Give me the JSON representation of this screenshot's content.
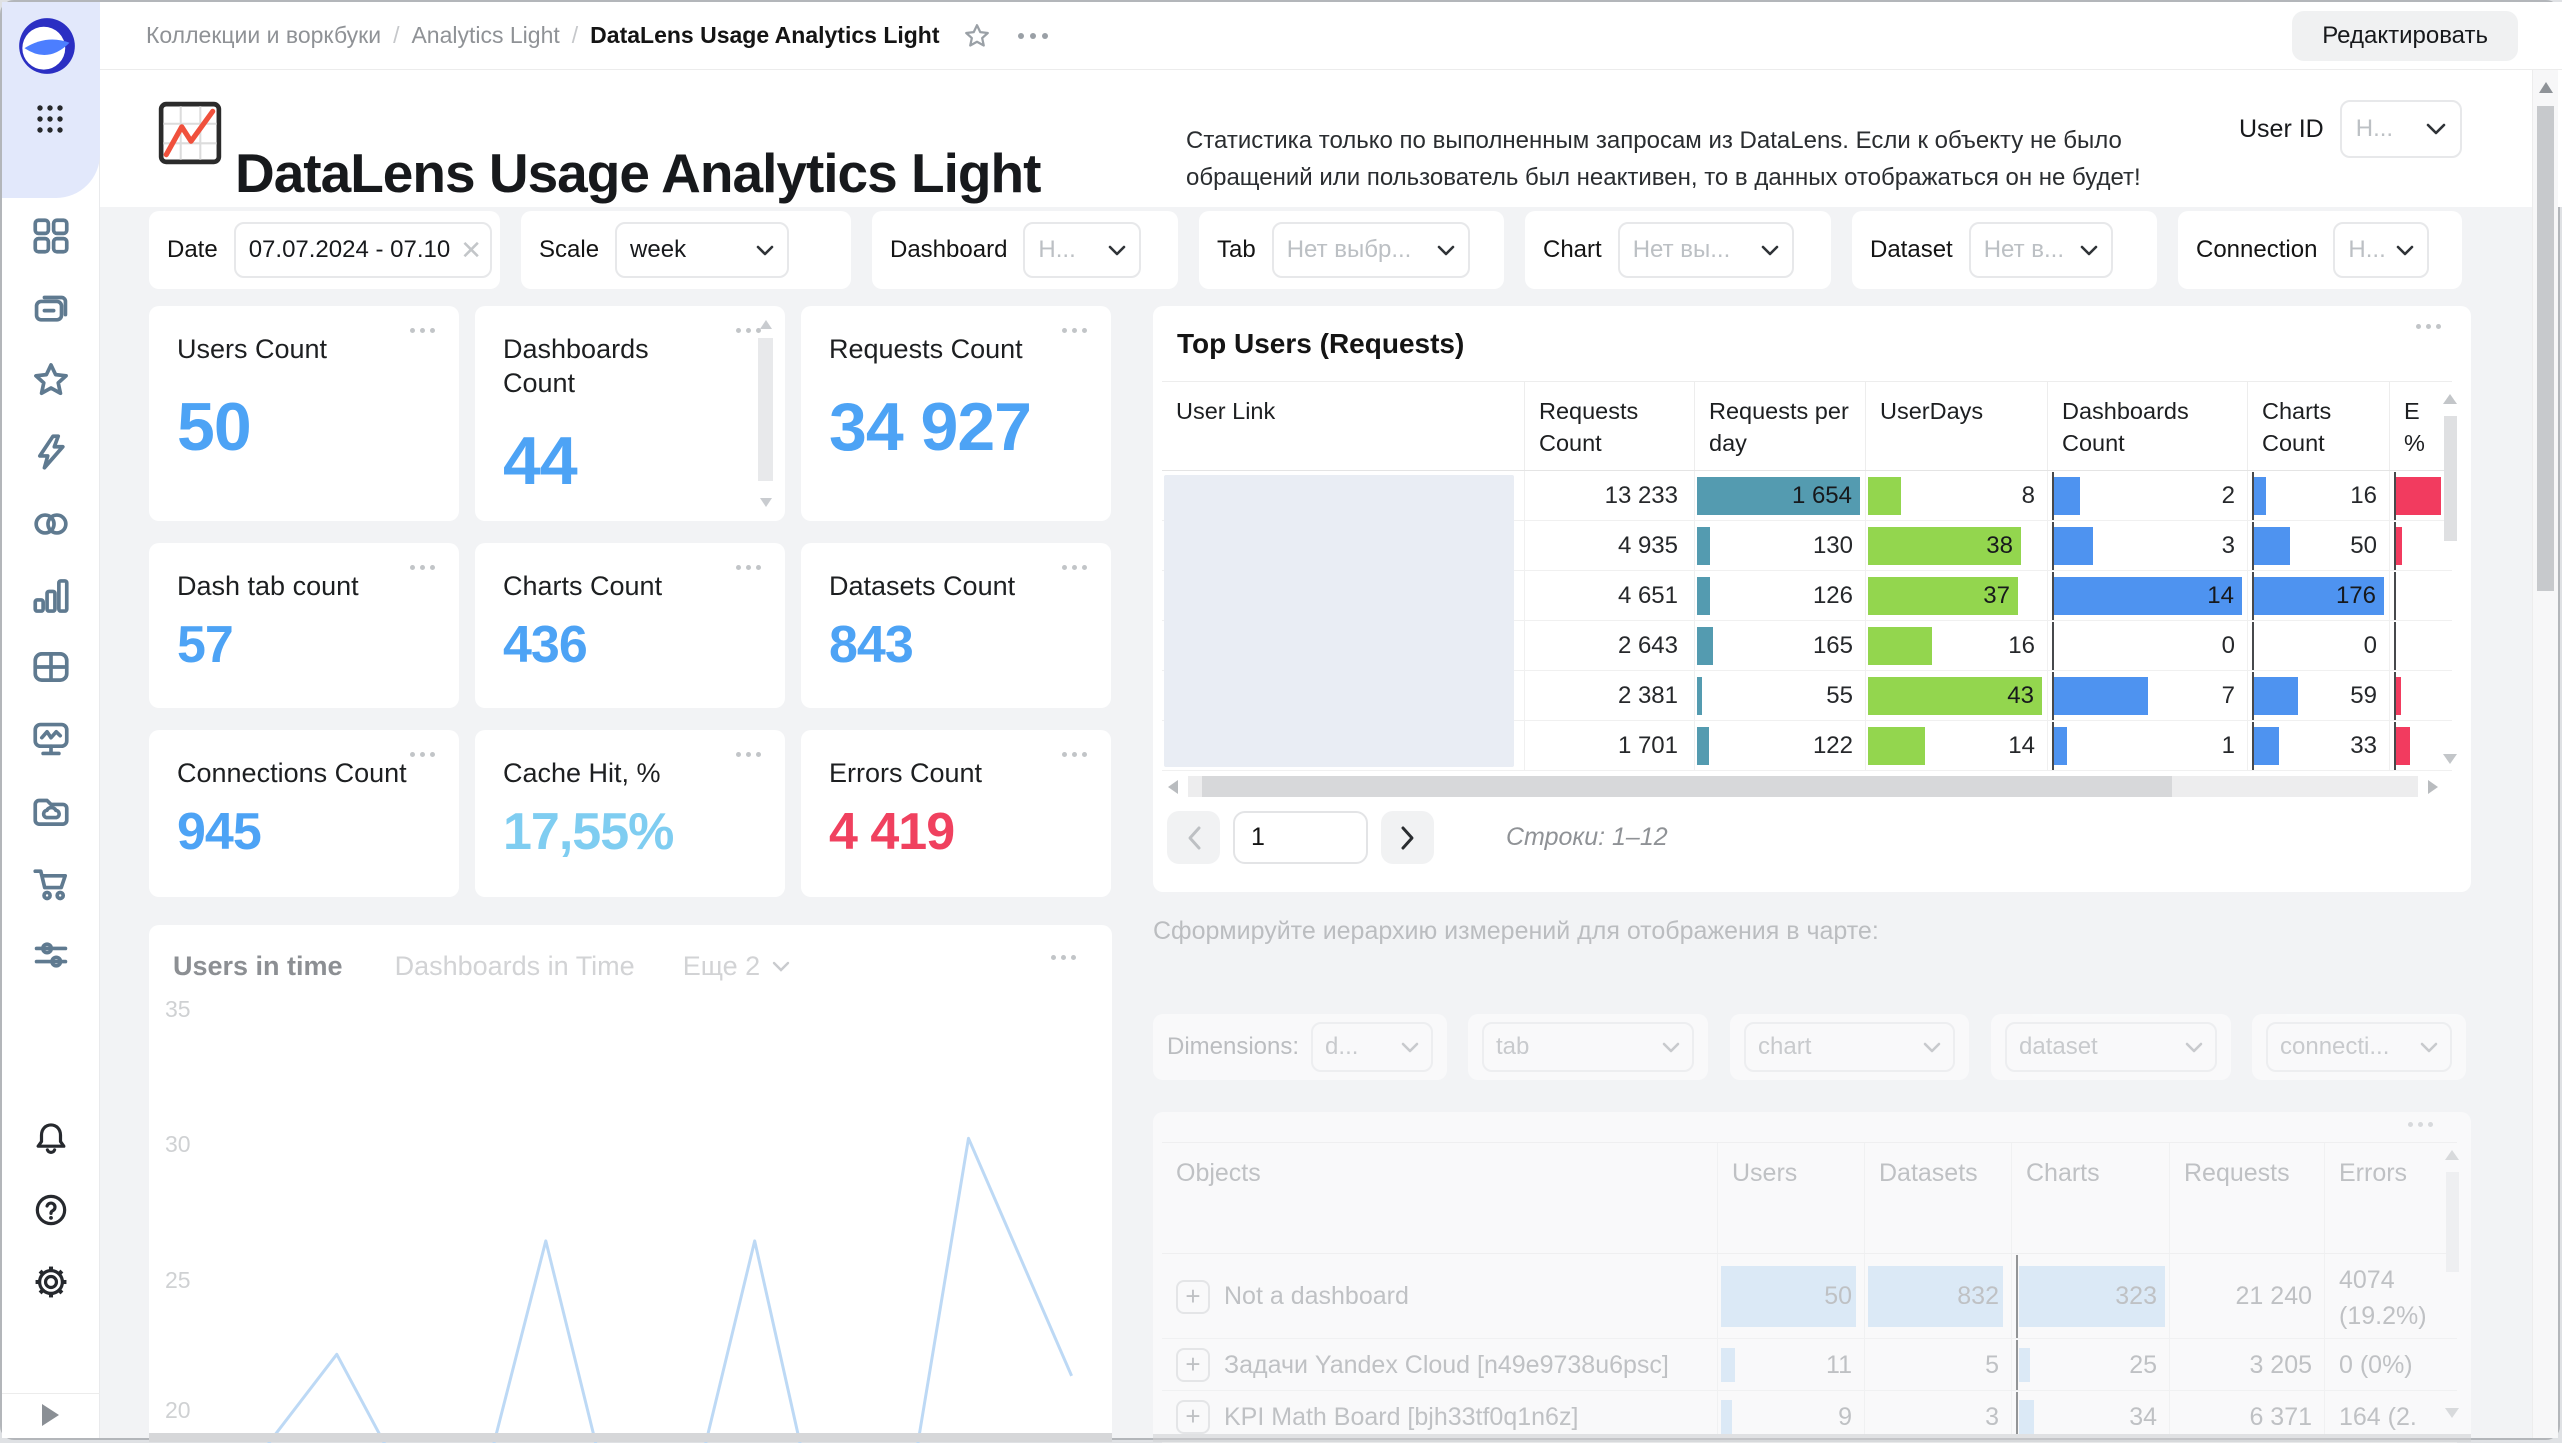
{
  "colors": {
    "accent_blue": "#4da3f5",
    "cache_cyan": "#7fcdf1",
    "error_red": "#f0415f",
    "bar_teal": "#549bb0",
    "bar_green": "#93d64e",
    "bar_blue": "#4e93f0",
    "bar_red": "#f23b5f",
    "bar_lightblue": "#c9e2f7",
    "logo_blue": "#2b2fc3",
    "logo_light": "#4c7eff",
    "title_icon_red": "#f0503c"
  },
  "sidebar": {
    "icons": [
      "datalens-logo",
      "apps-grid",
      "objects-grid",
      "collections",
      "favorites-star",
      "lightning",
      "datasets-circles",
      "charts-bar",
      "dashboards-table",
      "monitoring-screen",
      "storage-folder",
      "marketplace-cart",
      "services-sliders"
    ],
    "footer_icons": [
      "notifications-bell",
      "help-question",
      "settings-gear",
      "expand-arrow"
    ]
  },
  "topbar": {
    "breadcrumb": {
      "items": [
        "Коллекции и воркбуки",
        "Analytics Light",
        "DataLens Usage Analytics Light"
      ]
    },
    "edit_button": "Редактировать"
  },
  "header": {
    "title": "DataLens Usage Analytics Light",
    "description": "Статистика только по выполненным запросам из DataLens. Если к объекту не было обращений или пользователь был неактивен, то в данных отображаться он не будет!",
    "user_id": {
      "label": "User ID",
      "value": "Н..."
    }
  },
  "filters": [
    {
      "label": "Date",
      "value": "07.07.2024 - 07.10",
      "muted": false,
      "clearable": true
    },
    {
      "label": "Scale",
      "value": "week",
      "muted": false,
      "clearable": false
    },
    {
      "label": "Dashboard",
      "value": "Н...",
      "muted": true,
      "clearable": false
    },
    {
      "label": "Tab",
      "value": "Нет выбр...",
      "muted": true,
      "clearable": false
    },
    {
      "label": "Chart",
      "value": "Нет вы...",
      "muted": true,
      "clearable": false
    },
    {
      "label": "Dataset",
      "value": "Нет в...",
      "muted": true,
      "clearable": false
    },
    {
      "label": "Connection",
      "value": "Н...",
      "muted": true,
      "clearable": false
    }
  ],
  "kpis": [
    {
      "label": "Users Count",
      "value": "50",
      "color": "#4da3f5",
      "scrollbar": false
    },
    {
      "label": "Dashboards Count",
      "value": "44",
      "color": "#4da3f5",
      "scrollbar": true
    },
    {
      "label": "Requests Count",
      "value": "34 927",
      "color": "#4da3f5",
      "scrollbar": false
    },
    {
      "label": "Dash tab count",
      "value": "57",
      "color": "#4da3f5",
      "scrollbar": false
    },
    {
      "label": "Charts Count",
      "value": "436",
      "color": "#4da3f5",
      "scrollbar": false
    },
    {
      "label": "Datasets Count",
      "value": "843",
      "color": "#4da3f5",
      "scrollbar": false
    },
    {
      "label": "Connections Count",
      "value": "945",
      "color": "#4da3f5",
      "scrollbar": false
    },
    {
      "label": "Cache Hit, %",
      "value": "17,55%",
      "color": "#7fcdf1",
      "scrollbar": false
    },
    {
      "label": "Errors Count",
      "value": "4 419",
      "color": "#f0415f",
      "scrollbar": false
    }
  ],
  "top_users": {
    "title": "Top Users (Requests)",
    "columns": [
      "User Link",
      "Requests Count",
      "Requests per day",
      "UserDays",
      "Dashboards Count",
      "Charts Count",
      "E %"
    ],
    "rows": [
      {
        "requests_count": "13 233",
        "requests_per_day": {
          "value": "1 654",
          "frac": 1.0
        },
        "user_days": {
          "value": "8",
          "frac": 0.19
        },
        "dashboards_count": {
          "value": "2",
          "frac": 0.14
        },
        "charts_count": {
          "value": "16",
          "frac": 0.09
        },
        "errors_pct": {
          "frac": 1.0
        }
      },
      {
        "requests_count": "4 935",
        "requests_per_day": {
          "value": "130",
          "frac": 0.08
        },
        "user_days": {
          "value": "38",
          "frac": 0.88
        },
        "dashboards_count": {
          "value": "3",
          "frac": 0.21
        },
        "charts_count": {
          "value": "50",
          "frac": 0.28
        },
        "errors_pct": {
          "frac": 0.14
        }
      },
      {
        "requests_count": "4 651",
        "requests_per_day": {
          "value": "126",
          "frac": 0.08
        },
        "user_days": {
          "value": "37",
          "frac": 0.86
        },
        "dashboards_count": {
          "value": "14",
          "frac": 1.0
        },
        "charts_count": {
          "value": "176",
          "frac": 1.0
        },
        "errors_pct": {
          "frac": 0.0
        }
      },
      {
        "requests_count": "2 643",
        "requests_per_day": {
          "value": "165",
          "frac": 0.1
        },
        "user_days": {
          "value": "16",
          "frac": 0.37
        },
        "dashboards_count": {
          "value": "0",
          "frac": 0.0
        },
        "charts_count": {
          "value": "0",
          "frac": 0.0
        },
        "errors_pct": {
          "frac": 0.0
        }
      },
      {
        "requests_count": "2 381",
        "requests_per_day": {
          "value": "55",
          "frac": 0.033
        },
        "user_days": {
          "value": "43",
          "frac": 1.0
        },
        "dashboards_count": {
          "value": "7",
          "frac": 0.5
        },
        "charts_count": {
          "value": "59",
          "frac": 0.34
        },
        "errors_pct": {
          "frac": 0.12
        }
      },
      {
        "requests_count": "1 701",
        "requests_per_day": {
          "value": "122",
          "frac": 0.074
        },
        "user_days": {
          "value": "14",
          "frac": 0.33
        },
        "dashboards_count": {
          "value": "1",
          "frac": 0.07
        },
        "charts_count": {
          "value": "33",
          "frac": 0.19
        },
        "errors_pct": {
          "frac": 0.3
        }
      }
    ],
    "pagination": {
      "page": "1",
      "rows_info": "Строки: 1–12"
    }
  },
  "time_chart": {
    "tabs": [
      "Users in time",
      "Dashboards in Time"
    ],
    "more_tab": "Еще 2",
    "chart_data": {
      "type": "line",
      "title": "Users in time",
      "yticks": [
        35,
        30,
        25,
        20
      ],
      "ylim": [
        18.5,
        36
      ],
      "grid": false,
      "line_color": "#bdd9f5",
      "series": [
        {
          "name": "Users in time",
          "points": [
            [
              0.124,
              18.8
            ],
            [
              0.195,
              22.1
            ],
            [
              0.249,
              18.5
            ],
            [
              0.356,
              18.5
            ],
            [
              0.412,
              26.3
            ],
            [
              0.466,
              18.5
            ],
            [
              0.576,
              18.5
            ],
            [
              0.629,
              26.3
            ],
            [
              0.678,
              18.5
            ],
            [
              0.797,
              18.5
            ],
            [
              0.851,
              30.1
            ],
            [
              0.958,
              21.3
            ]
          ]
        }
      ]
    }
  },
  "hierarchy": {
    "prompt": "Сформируйте иерархию измерений для отображения в чарте:",
    "dimensions_label": "Dimensions:",
    "selects": [
      "d...",
      "tab",
      "chart",
      "dataset",
      "connecti..."
    ]
  },
  "objects_table": {
    "columns": [
      "Objects",
      "Users",
      "Datasets",
      "Charts",
      "Requests",
      "Errors"
    ],
    "rows": [
      {
        "name": "Not a dashboard",
        "users": {
          "value": "50",
          "frac": 1.0
        },
        "datasets": {
          "value": "832",
          "frac": 1.0
        },
        "charts": {
          "value": "323",
          "frac": 1.0
        },
        "requests": "21 240",
        "errors": "4074 (19.2%)"
      },
      {
        "name": "Задачи Yandex Cloud [n49e9738u6psc]",
        "users": {
          "value": "11",
          "frac": 0.1
        },
        "datasets": {
          "value": "5",
          "frac": 0.0
        },
        "charts": {
          "value": "25",
          "frac": 0.075
        },
        "requests": "3 205",
        "errors": "0 (0%)"
      },
      {
        "name": "KPI Math Board [bjh33tf0q1n6z]",
        "users": {
          "value": "9",
          "frac": 0.08
        },
        "datasets": {
          "value": "3",
          "frac": 0.0
        },
        "charts": {
          "value": "34",
          "frac": 0.105
        },
        "requests": "6 371",
        "errors": "164 (2."
      }
    ]
  }
}
